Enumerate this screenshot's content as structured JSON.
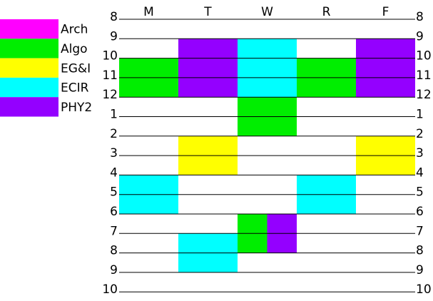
{
  "days": [
    "M",
    "T",
    "W",
    "R",
    "F"
  ],
  "hours": [
    "8",
    "9",
    "10",
    "11",
    "12",
    "1",
    "2",
    "3",
    "4",
    "5",
    "6",
    "7",
    "8",
    "9",
    "10"
  ],
  "legend": [
    {
      "label": "Arch",
      "color": "#ff00ff"
    },
    {
      "label": "Algo",
      "color": "#00ee00"
    },
    {
      "label": "EG&I",
      "color": "#ffff00"
    },
    {
      "label": "ECIR",
      "color": "#00ffff"
    },
    {
      "label": "PHY2",
      "color": "#9400ff"
    }
  ],
  "blocks": [
    {
      "course": "PHY2",
      "day": 1,
      "start": 1,
      "end": 2
    },
    {
      "course": "PHY2",
      "day": 4,
      "start": 1,
      "end": 2
    },
    {
      "course": "ECIR",
      "day": 2,
      "start": 1,
      "end": 4
    },
    {
      "course": "Algo",
      "day": 0,
      "start": 2,
      "end": 4
    },
    {
      "course": "PHY2",
      "day": 1,
      "start": 2,
      "end": 4
    },
    {
      "course": "Algo",
      "day": 3,
      "start": 2,
      "end": 4
    },
    {
      "course": "PHY2",
      "day": 4,
      "start": 2,
      "end": 4
    },
    {
      "course": "Algo",
      "day": 2,
      "start": 4,
      "end": 6
    },
    {
      "course": "EG&I",
      "day": 1,
      "start": 6,
      "end": 8
    },
    {
      "course": "EG&I",
      "day": 4,
      "start": 6,
      "end": 8
    },
    {
      "course": "ECIR",
      "day": 0,
      "start": 8,
      "end": 10
    },
    {
      "course": "ECIR",
      "day": 3,
      "start": 8,
      "end": 10
    },
    {
      "course": "Algo",
      "day": 2,
      "start": 10,
      "end": 12,
      "part": "left"
    },
    {
      "course": "PHY2",
      "day": 2,
      "start": 10,
      "end": 12,
      "part": "right"
    },
    {
      "course": "ECIR",
      "day": 1,
      "start": 11,
      "end": 13
    }
  ]
}
